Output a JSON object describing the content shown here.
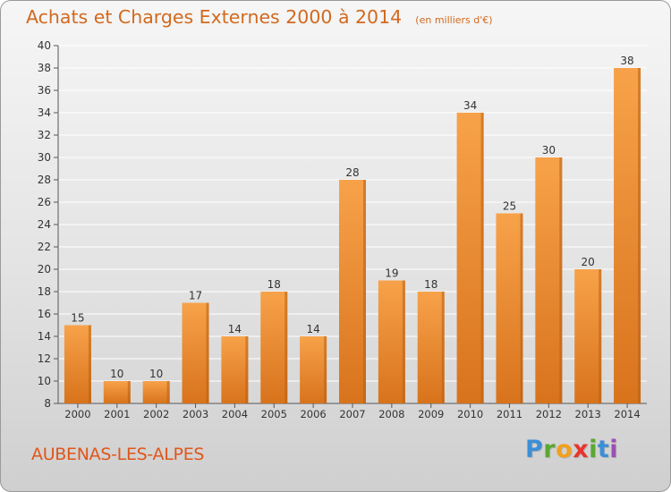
{
  "header": {
    "title": "Achats et Charges Externes 2000 à 2014",
    "subtitle": "(en milliers d'€)"
  },
  "footer": {
    "location": "AUBENAS-LES-ALPES",
    "logo_letters": [
      "P",
      "r",
      "o",
      "x",
      "i",
      "t",
      "i"
    ],
    "logo_colors": [
      "#3c8fd6",
      "#5aa832",
      "#f2a01e",
      "#e8352e",
      "#5aa832",
      "#3c8fd6",
      "#9b4fb3"
    ]
  },
  "colors": {
    "bar_light": "#f7a24a",
    "bar_dark": "#d8731c",
    "bar_side": "#b85e12",
    "text": "#333333",
    "grid": "#ffffff"
  },
  "chart_data": {
    "type": "bar",
    "categories": [
      "2000",
      "2001",
      "2002",
      "2003",
      "2004",
      "2005",
      "2006",
      "2007",
      "2008",
      "2009",
      "2010",
      "2011",
      "2012",
      "2013",
      "2014"
    ],
    "values": [
      15,
      10,
      10,
      17,
      14,
      18,
      14,
      28,
      19,
      18,
      34,
      25,
      30,
      20,
      38
    ],
    "ylim": [
      8,
      40
    ],
    "yticks": [
      8,
      10,
      12,
      14,
      16,
      18,
      20,
      22,
      24,
      26,
      28,
      30,
      32,
      34,
      36,
      38,
      40
    ],
    "grid": true
  }
}
